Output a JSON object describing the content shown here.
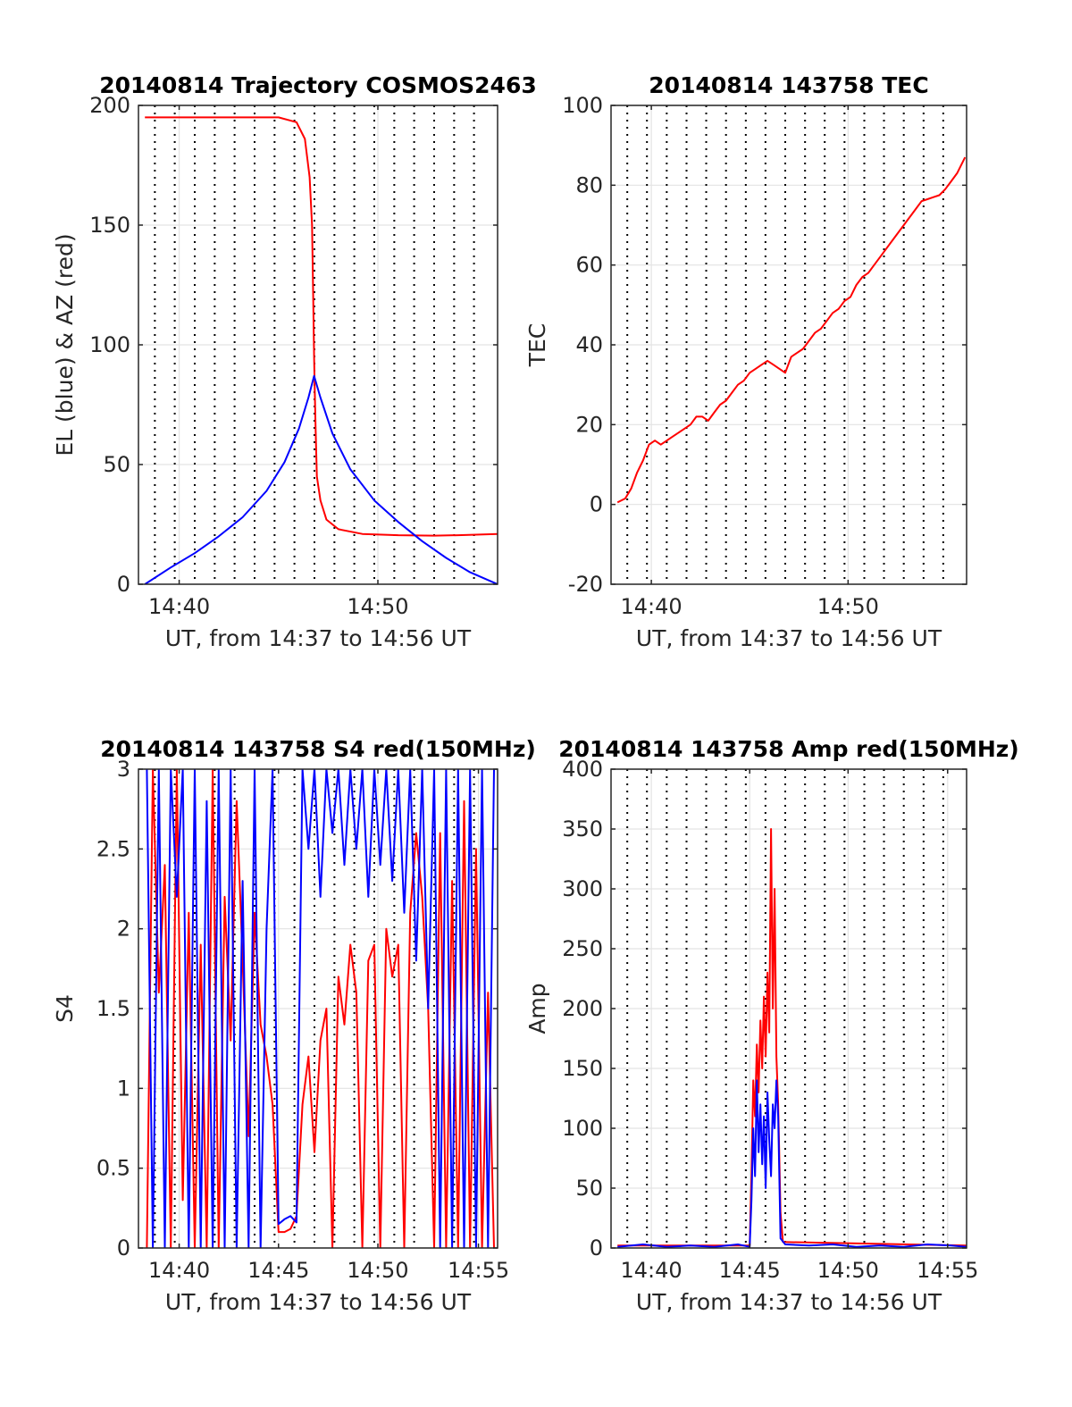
{
  "chart_data": [
    {
      "id": "trajectory",
      "type": "line",
      "title": "20140814 Trajectory COSMOS2463",
      "xlabel": "UT, from 14:37 to 14:56 UT",
      "ylabel": "EL (blue) & AZ (red)",
      "xlim": [
        14.633,
        14.933
      ],
      "ylim": [
        0,
        200
      ],
      "xticks": [
        14.667,
        14.833
      ],
      "xticklabels": [
        "14:40",
        "14:50"
      ],
      "yticks": [
        0,
        50,
        100,
        150,
        200
      ],
      "yticklabels": [
        "0",
        "50",
        "100",
        "150",
        "200"
      ],
      "grid": true,
      "vlines_dotted": [
        14.6467,
        14.6633,
        14.68,
        14.6967,
        14.7133,
        14.73,
        14.7467,
        14.7633,
        14.78,
        14.7967,
        14.8133,
        14.83,
        14.8467,
        14.8633,
        14.88,
        14.8967,
        14.9133
      ],
      "series": [
        {
          "color": "#ff0000",
          "x": [
            14.6384,
            14.7,
            14.75,
            14.765,
            14.772,
            14.776,
            14.778,
            14.779,
            14.7797,
            14.7803,
            14.781,
            14.782,
            14.785,
            14.79,
            14.8,
            14.82,
            14.85,
            14.88,
            14.9,
            14.933
          ],
          "y": [
            195,
            195,
            195,
            193,
            186,
            170,
            150,
            120,
            95,
            80,
            65,
            45,
            35,
            27,
            23,
            21,
            20.5,
            20.3,
            20.5,
            21
          ]
        },
        {
          "color": "#0000ff",
          "x": [
            14.6384,
            14.66,
            14.68,
            14.7,
            14.72,
            14.74,
            14.755,
            14.767,
            14.775,
            14.7797,
            14.785,
            14.795,
            14.81,
            14.83,
            14.85,
            14.87,
            14.89,
            14.91,
            14.933
          ],
          "y": [
            0,
            7,
            13,
            20,
            28,
            39,
            51,
            65,
            78,
            87,
            78,
            63,
            48,
            35,
            26,
            18,
            11,
            5,
            0
          ]
        }
      ]
    },
    {
      "id": "tec",
      "type": "line",
      "title": "20140814 143758 TEC",
      "xlabel": "UT, from 14:37 to 14:56 UT",
      "ylabel": "TEC",
      "xlim": [
        14.633,
        14.933
      ],
      "ylim": [
        -20,
        100
      ],
      "xticks": [
        14.667,
        14.833
      ],
      "xticklabels": [
        "14:40",
        "14:50"
      ],
      "yticks": [
        -20,
        0,
        20,
        40,
        60,
        80,
        100
      ],
      "yticklabels": [
        "-20",
        "0",
        "20",
        "40",
        "60",
        "80",
        "100"
      ],
      "grid": true,
      "vlines_dotted": [
        14.6467,
        14.6633,
        14.68,
        14.6967,
        14.7133,
        14.73,
        14.7467,
        14.7633,
        14.78,
        14.7967,
        14.8133,
        14.83,
        14.8467,
        14.8633,
        14.88,
        14.8967,
        14.9133
      ],
      "series": [
        {
          "color": "#ff0000",
          "x": [
            14.6384,
            14.645,
            14.65,
            14.655,
            14.66,
            14.665,
            14.67,
            14.675,
            14.68,
            14.685,
            14.69,
            14.695,
            14.7,
            14.705,
            14.71,
            14.715,
            14.72,
            14.725,
            14.73,
            14.735,
            14.74,
            14.745,
            14.75,
            14.755,
            14.76,
            14.765,
            14.77,
            14.775,
            14.78,
            14.785,
            14.79,
            14.795,
            14.8,
            14.805,
            14.81,
            14.815,
            14.82,
            14.825,
            14.83,
            14.835,
            14.84,
            14.845,
            14.85,
            14.855,
            14.86,
            14.865,
            14.87,
            14.875,
            14.88,
            14.885,
            14.89,
            14.895,
            14.9,
            14.905,
            14.91,
            14.915,
            14.92,
            14.925,
            14.9317
          ],
          "y": [
            0.5,
            1.5,
            4,
            8,
            11,
            15,
            16,
            15,
            16,
            17,
            18,
            19,
            20,
            22,
            22,
            21,
            23,
            25,
            26,
            28,
            30,
            31,
            33,
            34,
            35,
            36,
            35,
            34,
            33,
            37,
            38,
            39,
            41,
            43,
            44,
            46,
            48,
            49,
            51,
            52,
            55,
            57,
            58,
            60,
            62,
            64,
            66,
            68,
            70,
            72,
            74,
            76,
            76.5,
            77,
            77.5,
            79,
            81,
            83,
            87
          ]
        }
      ]
    },
    {
      "id": "s4",
      "type": "line",
      "title": "20140814 143758 S4 red(150MHz)",
      "xlabel": "UT, from 14:37 to 14:56 UT",
      "ylabel": "S4",
      "xlim": [
        14.633,
        14.933
      ],
      "ylim": [
        0,
        3
      ],
      "xticks": [
        14.667,
        14.75,
        14.833,
        14.917
      ],
      "xticklabels": [
        "14:40",
        "14:45",
        "14:50",
        "14:55"
      ],
      "yticks": [
        0,
        0.5,
        1,
        1.5,
        2,
        2.5,
        3
      ],
      "yticklabels": [
        "0",
        "0.5",
        "1",
        "1.5",
        "2",
        "2.5",
        "3"
      ],
      "grid": true,
      "vlines_dotted": [
        14.6467,
        14.6633,
        14.68,
        14.6967,
        14.7133,
        14.73,
        14.7467,
        14.7633,
        14.78,
        14.7967,
        14.8133,
        14.83,
        14.8467,
        14.8633,
        14.88,
        14.8967,
        14.9133
      ],
      "series": [
        {
          "color": "#ff0000",
          "x": [
            14.64,
            14.645,
            14.65,
            14.655,
            14.66,
            14.665,
            14.67,
            14.675,
            14.68,
            14.685,
            14.69,
            14.695,
            14.7,
            14.705,
            14.71,
            14.715,
            14.72,
            14.725,
            14.73,
            14.735,
            14.74,
            14.745,
            14.75,
            14.755,
            14.76,
            14.765,
            14.77,
            14.775,
            14.78,
            14.785,
            14.79,
            14.795,
            14.8,
            14.805,
            14.81,
            14.815,
            14.82,
            14.825,
            14.83,
            14.835,
            14.84,
            14.845,
            14.85,
            14.855,
            14.86,
            14.865,
            14.87,
            14.875,
            14.88,
            14.885,
            14.89,
            14.895,
            14.9,
            14.905,
            14.91,
            14.915,
            14.92,
            14.925,
            14.93
          ],
          "y": [
            0,
            3,
            1.6,
            2.4,
            0,
            3,
            0.3,
            2.1,
            0,
            1.9,
            0,
            3,
            0,
            2.2,
            1.3,
            2.8,
            1.8,
            0.7,
            2.1,
            1.4,
            1.2,
            0.9,
            0.1,
            0.1,
            0.12,
            0.2,
            0.9,
            1.2,
            0.6,
            1.3,
            1.5,
            0,
            1.7,
            1.4,
            1.9,
            1.6,
            0,
            1.8,
            1.9,
            0,
            2,
            1.7,
            1.9,
            0,
            2.1,
            2.6,
            2.2,
            1.5,
            0,
            2.6,
            0,
            2.3,
            0,
            2.8,
            0,
            2.5,
            0,
            1.6,
            0
          ]
        },
        {
          "color": "#0000ff",
          "x": [
            14.64,
            14.645,
            14.65,
            14.655,
            14.66,
            14.665,
            14.67,
            14.675,
            14.68,
            14.685,
            14.69,
            14.695,
            14.7,
            14.705,
            14.71,
            14.715,
            14.72,
            14.725,
            14.73,
            14.735,
            14.74,
            14.745,
            14.75,
            14.755,
            14.76,
            14.765,
            14.77,
            14.775,
            14.78,
            14.785,
            14.79,
            14.795,
            14.8,
            14.805,
            14.81,
            14.815,
            14.82,
            14.825,
            14.83,
            14.835,
            14.84,
            14.845,
            14.85,
            14.855,
            14.86,
            14.865,
            14.87,
            14.875,
            14.88,
            14.885,
            14.89,
            14.895,
            14.9,
            14.905,
            14.91,
            14.915,
            14.92,
            14.925,
            14.93
          ],
          "y": [
            3,
            0,
            3,
            0,
            3,
            2.2,
            3,
            0,
            3,
            0,
            2.8,
            0,
            3,
            0,
            3,
            0,
            2.3,
            0,
            3,
            0,
            2,
            3,
            0.15,
            0.18,
            0.2,
            0.16,
            3,
            2.5,
            3,
            2.2,
            3,
            2.6,
            3,
            2.4,
            3,
            2.5,
            3,
            2.2,
            3,
            2.4,
            3,
            2.3,
            3,
            2.1,
            3,
            1.8,
            3,
            1.5,
            3,
            0,
            3,
            0,
            3,
            0,
            3,
            0,
            3,
            0,
            3
          ]
        }
      ]
    },
    {
      "id": "amp",
      "type": "line",
      "title": "20140814 143758 Amp red(150MHz)",
      "xlabel": "UT, from 14:37 to 14:56 UT",
      "ylabel": "Amp",
      "xlim": [
        14.633,
        14.933
      ],
      "ylim": [
        0,
        400
      ],
      "xticks": [
        14.667,
        14.75,
        14.833,
        14.917
      ],
      "xticklabels": [
        "14:40",
        "14:45",
        "14:50",
        "14:55"
      ],
      "yticks": [
        0,
        50,
        100,
        150,
        200,
        250,
        300,
        350,
        400
      ],
      "yticklabels": [
        "0",
        "50",
        "100",
        "150",
        "200",
        "250",
        "300",
        "350",
        "400"
      ],
      "grid": true,
      "vlines_dotted": [
        14.6467,
        14.6633,
        14.68,
        14.6967,
        14.7133,
        14.73,
        14.7467,
        14.7633,
        14.78,
        14.7967,
        14.8133,
        14.83,
        14.8467,
        14.8633,
        14.88,
        14.8967,
        14.9133
      ],
      "series": [
        {
          "color": "#ff0000",
          "x": [
            14.6384,
            14.75,
            14.7515,
            14.753,
            14.7545,
            14.756,
            14.7575,
            14.759,
            14.7605,
            14.762,
            14.7635,
            14.765,
            14.7665,
            14.768,
            14.7695,
            14.771,
            14.7725,
            14.774,
            14.776,
            14.778,
            14.933
          ],
          "y": [
            2,
            2,
            60,
            140,
            110,
            170,
            130,
            190,
            150,
            210,
            160,
            230,
            180,
            350,
            200,
            300,
            160,
            120,
            30,
            5,
            2
          ]
        },
        {
          "color": "#0000ff",
          "x": [
            14.6384,
            14.66,
            14.68,
            14.7,
            14.72,
            14.74,
            14.75,
            14.7515,
            14.753,
            14.7545,
            14.756,
            14.7575,
            14.759,
            14.7605,
            14.762,
            14.7635,
            14.765,
            14.7665,
            14.768,
            14.7695,
            14.771,
            14.7725,
            14.774,
            14.776,
            14.78,
            14.8,
            14.82,
            14.84,
            14.86,
            14.88,
            14.9,
            14.92,
            14.933
          ],
          "y": [
            1,
            3,
            1,
            2,
            1,
            3,
            1,
            40,
            100,
            60,
            140,
            80,
            120,
            70,
            110,
            50,
            130,
            90,
            60,
            120,
            100,
            140,
            110,
            8,
            3,
            2,
            3,
            1,
            2,
            1,
            3,
            2,
            1
          ]
        }
      ]
    }
  ]
}
